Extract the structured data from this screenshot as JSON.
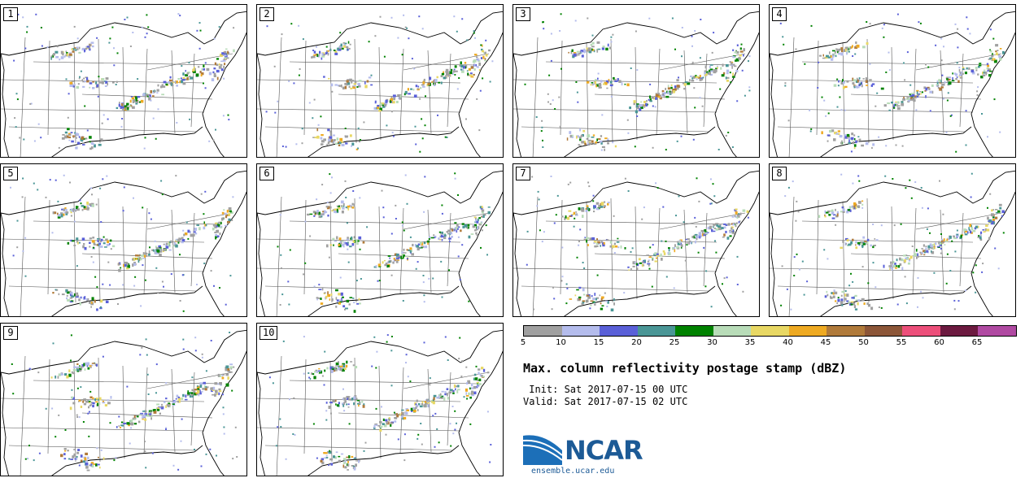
{
  "panels": [
    {
      "label": "1"
    },
    {
      "label": "2"
    },
    {
      "label": "3"
    },
    {
      "label": "4"
    },
    {
      "label": "5"
    },
    {
      "label": "6"
    },
    {
      "label": "7"
    },
    {
      "label": "8"
    },
    {
      "label": "9"
    },
    {
      "label": "10"
    }
  ],
  "legend": {
    "colors": [
      "#a0a0a0",
      "#b4bcec",
      "#5a60d8",
      "#4a9696",
      "#008200",
      "#b8dcb8",
      "#e8d864",
      "#eeaa22",
      "#b07a3a",
      "#8c5638",
      "#ec4f7a",
      "#6c1a40",
      "#b04aa2"
    ],
    "ticks": [
      "5",
      "10",
      "15",
      "20",
      "25",
      "30",
      "35",
      "40",
      "45",
      "50",
      "55",
      "60",
      "65"
    ]
  },
  "title": "Max. column reflectivity postage stamp (dBZ)",
  "init": " Init: Sat 2017-07-15 00 UTC",
  "valid": "Valid: Sat 2017-07-15 02 UTC",
  "logo": {
    "text": "NCAR",
    "site": "ensemble.ucar.edu"
  }
}
